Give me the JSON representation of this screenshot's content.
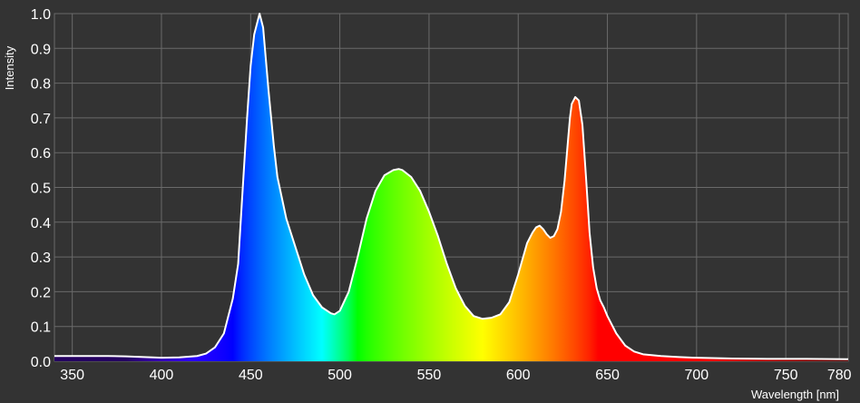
{
  "colors": {
    "background": "#333333",
    "grid": "#6a6a6a",
    "curve": "#ffffff",
    "text": "#ffffff"
  },
  "chart_data": {
    "type": "area",
    "title": "",
    "xlabel": "Wavelength [nm]",
    "ylabel": "Intensity",
    "xlim": [
      340,
      785
    ],
    "ylim": [
      0.0,
      1.0
    ],
    "grid": true,
    "fill": "visible-spectrum gradient by wavelength",
    "x_ticks": [
      350,
      400,
      450,
      500,
      550,
      600,
      650,
      700,
      750,
      780
    ],
    "y_ticks": [
      "0.0",
      "0.1",
      "0.2",
      "0.3",
      "0.4",
      "0.5",
      "0.6",
      "0.7",
      "0.8",
      "0.9",
      "1.0"
    ],
    "series": [
      {
        "x": [
          340,
          350,
          360,
          370,
          380,
          390,
          400,
          410,
          420,
          425,
          430,
          435,
          440,
          443,
          445,
          448,
          450,
          452,
          454,
          455,
          456,
          457,
          458,
          460,
          463,
          465,
          470,
          475,
          480,
          485,
          490,
          495,
          497,
          500,
          505,
          510,
          515,
          520,
          525,
          530,
          533,
          535,
          540,
          545,
          550,
          555,
          560,
          565,
          570,
          575,
          580,
          585,
          590,
          595,
          600,
          605,
          608,
          610,
          612,
          614,
          616,
          618,
          620,
          622,
          624,
          626,
          628,
          629,
          630,
          632,
          634,
          636,
          638,
          640,
          642,
          644,
          646,
          648,
          650,
          655,
          660,
          665,
          670,
          680,
          690,
          700,
          720,
          740,
          760,
          785
        ],
        "y": [
          0.015,
          0.015,
          0.015,
          0.015,
          0.014,
          0.012,
          0.01,
          0.011,
          0.015,
          0.022,
          0.04,
          0.08,
          0.18,
          0.28,
          0.45,
          0.7,
          0.85,
          0.94,
          0.98,
          1.0,
          0.98,
          0.96,
          0.9,
          0.78,
          0.62,
          0.53,
          0.41,
          0.33,
          0.25,
          0.19,
          0.155,
          0.138,
          0.135,
          0.145,
          0.2,
          0.3,
          0.41,
          0.49,
          0.535,
          0.55,
          0.553,
          0.55,
          0.53,
          0.49,
          0.43,
          0.36,
          0.28,
          0.21,
          0.16,
          0.13,
          0.122,
          0.125,
          0.135,
          0.17,
          0.25,
          0.34,
          0.37,
          0.385,
          0.39,
          0.38,
          0.365,
          0.355,
          0.36,
          0.38,
          0.43,
          0.52,
          0.64,
          0.7,
          0.74,
          0.76,
          0.75,
          0.68,
          0.53,
          0.37,
          0.27,
          0.21,
          0.175,
          0.155,
          0.13,
          0.08,
          0.045,
          0.028,
          0.02,
          0.015,
          0.012,
          0.01,
          0.008,
          0.007,
          0.007,
          0.006
        ]
      }
    ]
  }
}
